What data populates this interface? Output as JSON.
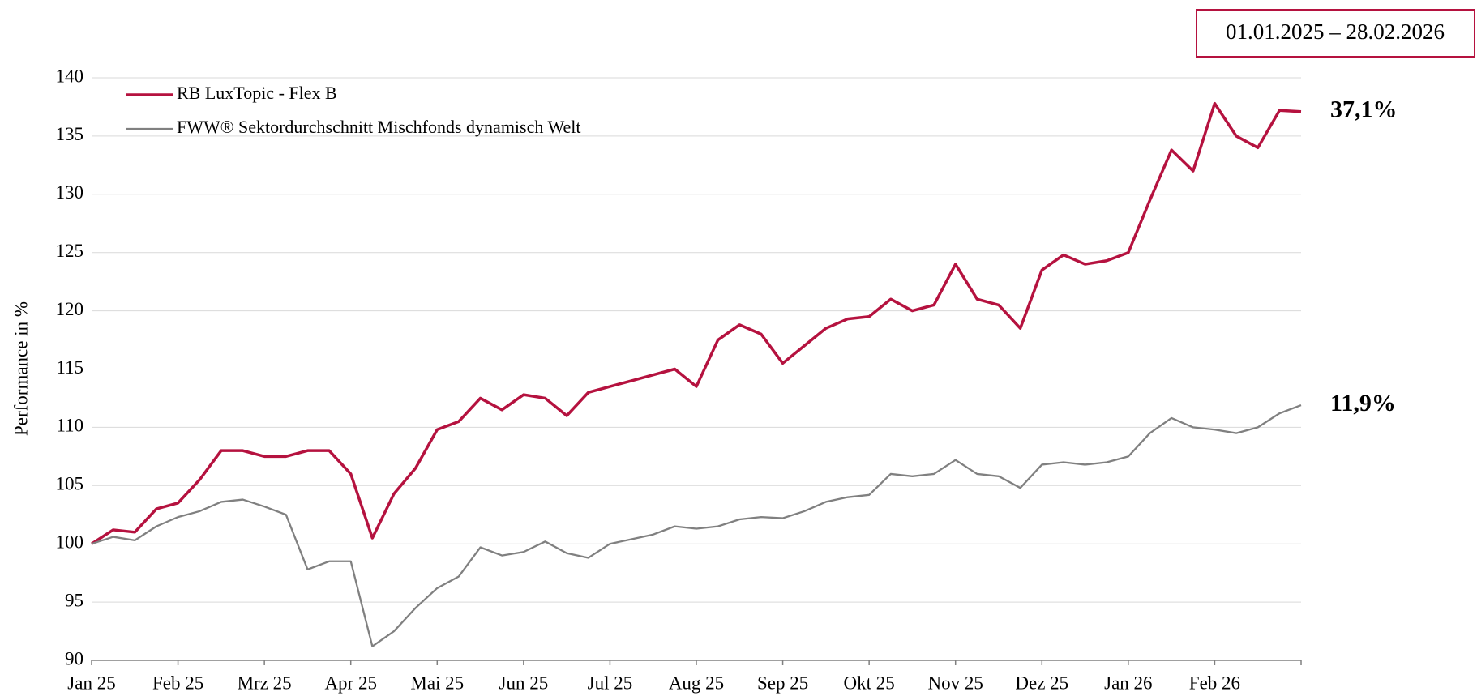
{
  "chart_data": {
    "type": "line",
    "date_range": "01.01.2025 – 28.02.2026",
    "ylabel": "Performance in %",
    "categories": [
      "Jan 25",
      null,
      null,
      null,
      "Feb 25",
      null,
      null,
      null,
      "Mrz 25",
      null,
      null,
      null,
      "Apr 25",
      null,
      null,
      null,
      "Mai 25",
      null,
      null,
      null,
      "Jun 25",
      null,
      null,
      null,
      "Jul 25",
      null,
      null,
      null,
      "Aug 25",
      null,
      null,
      null,
      "Sep 25",
      null,
      null,
      null,
      "Okt 25",
      null,
      null,
      null,
      "Nov 25",
      null,
      null,
      null,
      "Dez 25",
      null,
      null,
      null,
      "Jan 26",
      null,
      null,
      null,
      "Feb 26",
      null,
      null,
      null,
      null
    ],
    "series": [
      {
        "name": "RB LuxTopic - Flex B",
        "color": "#b5123f",
        "end_label": "37,1%",
        "values": [
          100,
          101.2,
          101,
          103,
          103.5,
          105.5,
          108,
          108,
          107.5,
          107.5,
          108,
          108,
          106,
          100.5,
          104.3,
          106.5,
          109.8,
          110.5,
          112.5,
          111.5,
          112.8,
          112.5,
          111,
          113,
          113.5,
          114,
          114.5,
          115,
          113.5,
          117.5,
          118.8,
          118,
          115.5,
          117,
          118.5,
          119.3,
          119.5,
          121,
          120,
          120.5,
          124,
          121,
          120.5,
          118.5,
          123.5,
          124.8,
          124,
          124.3,
          125,
          129.5,
          133.8,
          132,
          137.8,
          135,
          134,
          137.2,
          137.1
        ]
      },
      {
        "name": "FWW® Sektordurchschnitt Mischfonds dynamisch Welt",
        "color": "#808080",
        "end_label": "11,9%",
        "values": [
          100,
          100.6,
          100.3,
          101.5,
          102.3,
          102.8,
          103.6,
          103.8,
          103.2,
          102.5,
          97.8,
          98.5,
          98.5,
          91.2,
          92.5,
          94.5,
          96.2,
          97.2,
          99.7,
          99,
          99.3,
          100.2,
          99.2,
          98.8,
          100,
          100.4,
          100.8,
          101.5,
          101.3,
          101.5,
          102.1,
          102.3,
          102.2,
          102.8,
          103.6,
          104,
          104.2,
          106,
          105.8,
          106,
          107.2,
          106,
          105.8,
          104.8,
          106.8,
          107,
          106.8,
          107,
          107.5,
          109.5,
          110.8,
          110,
          109.8,
          109.5,
          110,
          111.2,
          111.9
        ]
      }
    ],
    "ylim": [
      90,
      140
    ],
    "yticks": [
      90,
      95,
      100,
      105,
      110,
      115,
      120,
      125,
      130,
      135,
      140
    ],
    "grid": true,
    "legend": "upper left"
  }
}
